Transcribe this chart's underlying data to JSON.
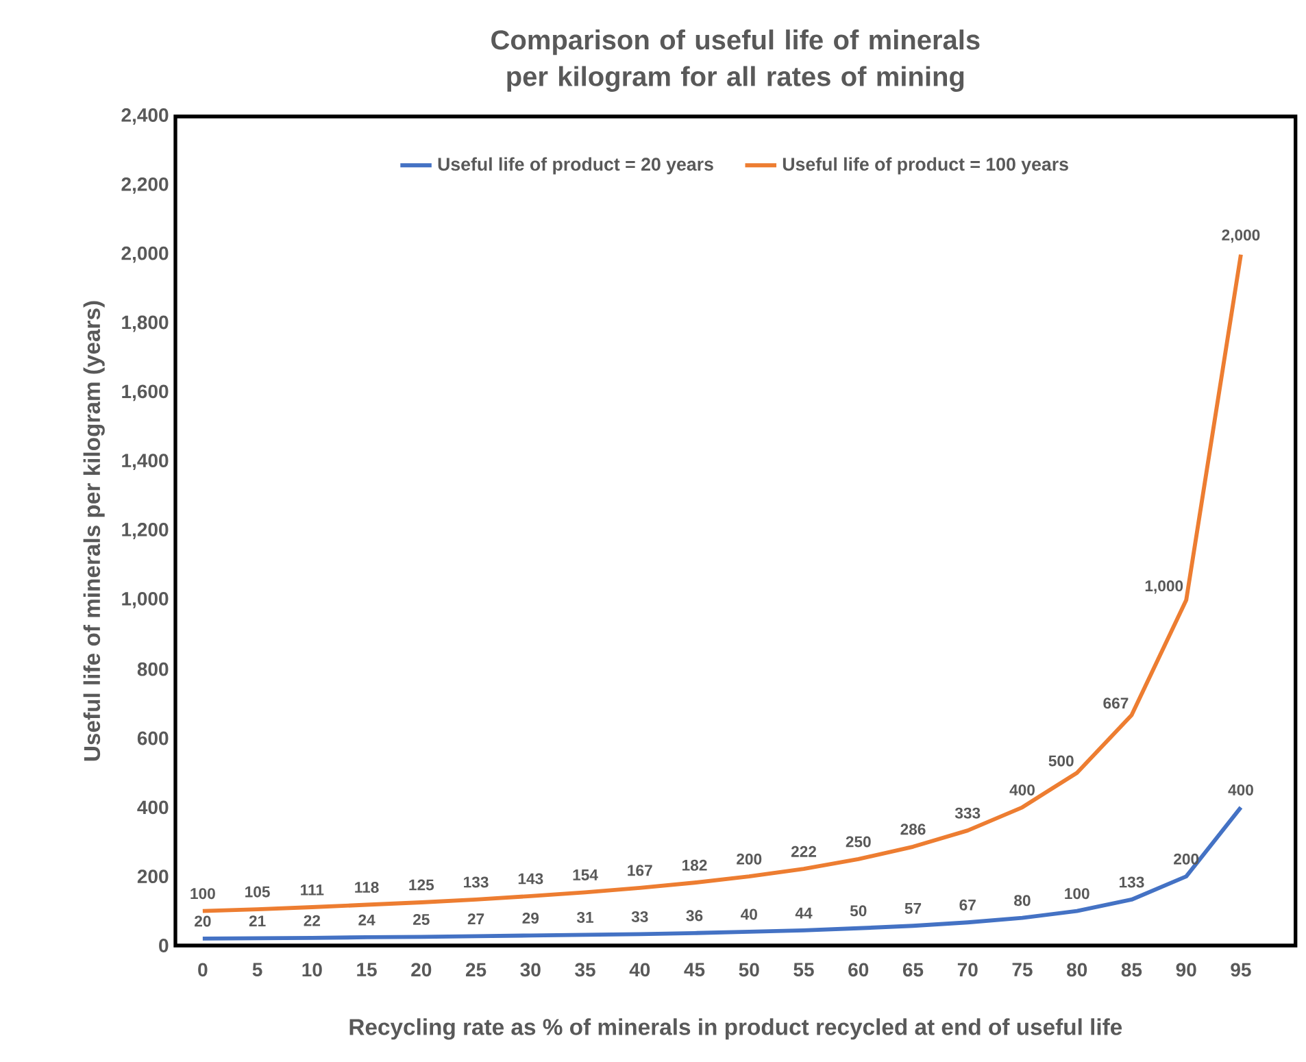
{
  "chart_data": {
    "type": "line",
    "title": "Comparison of useful life of minerals per kilogram for all rates of mining",
    "xlabel": "Recycling rate as % of minerals in product recycled at end of useful life",
    "ylabel": "Useful life of minerals per kilogram (years)",
    "categories": [
      "0",
      "5",
      "10",
      "15",
      "20",
      "25",
      "30",
      "35",
      "40",
      "45",
      "50",
      "55",
      "60",
      "65",
      "70",
      "75",
      "80",
      "85",
      "90",
      "95"
    ],
    "ylim": [
      0,
      2400
    ],
    "yticks": [
      0,
      200,
      400,
      600,
      800,
      {
        "value": 1000,
        "label": "1,000"
      },
      {
        "value": 1200,
        "label": "1,200"
      },
      {
        "value": 1400,
        "label": "1,400"
      },
      {
        "value": 1600,
        "label": "1,600"
      },
      {
        "value": 1800,
        "label": "1,800"
      },
      {
        "value": 2000,
        "label": "2,000"
      },
      {
        "value": 2200,
        "label": "2,200"
      },
      {
        "value": 2400,
        "label": "2,400"
      }
    ],
    "series": [
      {
        "name": "Useful life of product = 20 years",
        "color": "#4472c4",
        "values": [
          20,
          21,
          22,
          24,
          25,
          27,
          29,
          31,
          33,
          36,
          40,
          44,
          50,
          57,
          67,
          80,
          100,
          133,
          200,
          400
        ],
        "value_labels": [
          "20",
          "21",
          "22",
          "24",
          "25",
          "27",
          "29",
          "31",
          "33",
          "36",
          "40",
          "44",
          "50",
          "57",
          "67",
          "80",
          "100",
          "133",
          "200",
          "400"
        ]
      },
      {
        "name": "Useful life of product = 100 years",
        "color": "#ed7d31",
        "values": [
          100,
          105,
          111,
          118,
          125,
          133,
          143,
          154,
          167,
          182,
          200,
          222,
          250,
          286,
          333,
          400,
          500,
          667,
          1000,
          2000
        ],
        "value_labels": [
          "100",
          "105",
          "111",
          "118",
          "125",
          "133",
          "143",
          "154",
          "167",
          "182",
          "200",
          "222",
          "250",
          "286",
          "333",
          "400",
          "500",
          "667",
          "1,000",
          "2,000"
        ]
      }
    ],
    "legend": "top",
    "grid": false,
    "marker": "none",
    "line_style": "solid"
  }
}
